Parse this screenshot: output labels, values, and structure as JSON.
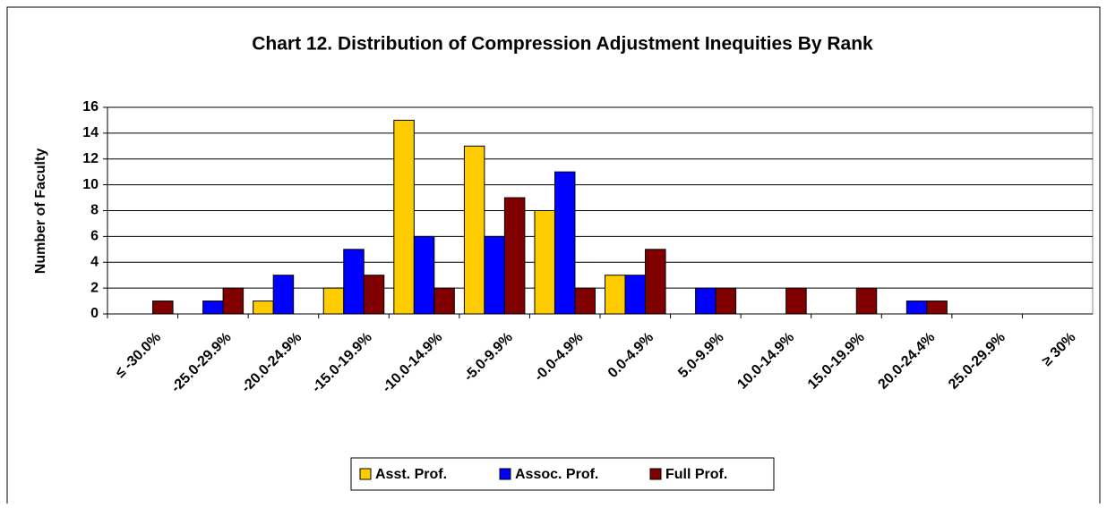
{
  "chart_data": {
    "type": "bar",
    "title": "Chart 12. Distribution of Compression Adjustment Inequities By Rank",
    "y_label": "Number of Faculty",
    "categories": [
      "≤ -30.0%",
      "-25.0-29.9%",
      "-20.0-24.9%",
      "-15.0-19.9%",
      "-10.0-14.9%",
      "-5.0-9.9%",
      "-0.0-4.9%",
      "0.0-4.9%",
      "5.0-9.9%",
      "10.0-14.9%",
      "15.0-19.9%",
      "20.0-24.4%",
      "25.0-29.9%",
      "≥ 30%"
    ],
    "series": [
      {
        "name": "Asst. Prof.",
        "color": "#ffcc00",
        "values": [
          0,
          0,
          1,
          2,
          15,
          13,
          8,
          3,
          0,
          0,
          0,
          0,
          0,
          0
        ]
      },
      {
        "name": "Assoc. Prof.",
        "color": "#0000ff",
        "values": [
          0,
          1,
          3,
          5,
          6,
          6,
          11,
          3,
          2,
          0,
          0,
          1,
          0,
          0
        ]
      },
      {
        "name": "Full Prof.",
        "color": "#800000",
        "values": [
          1,
          2,
          0,
          3,
          2,
          9,
          2,
          5,
          2,
          2,
          2,
          1,
          0,
          0
        ]
      }
    ],
    "ylim": [
      0,
      16
    ],
    "yticks": [
      0,
      2,
      4,
      6,
      8,
      10,
      12,
      14,
      16
    ],
    "grid": true,
    "legend": "bottom"
  }
}
